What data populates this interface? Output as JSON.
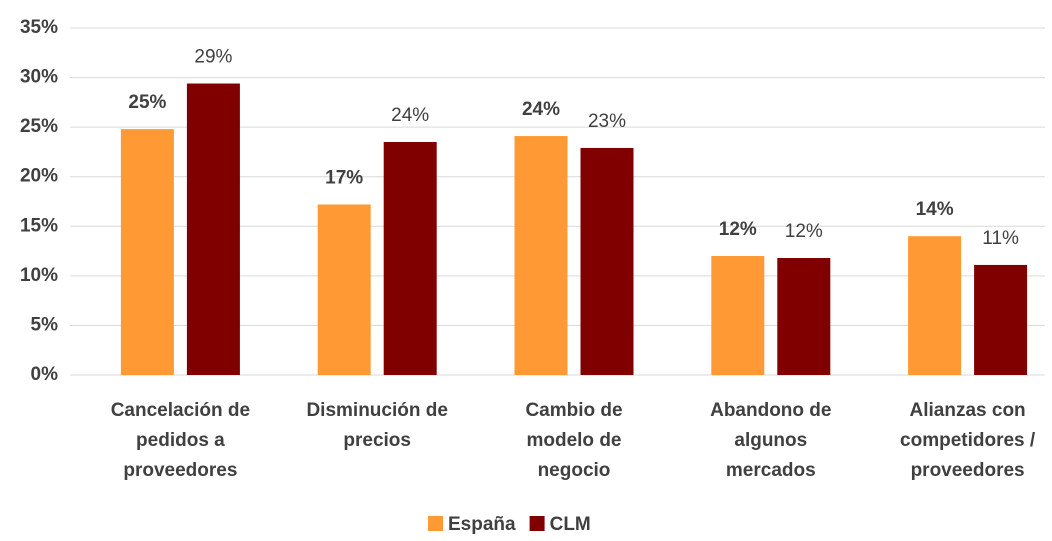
{
  "chart_data": {
    "type": "bar",
    "categories": [
      "Cancelación de\npedidos a\nproveedores",
      "Disminución de\nprecios",
      "Cambio de\nmodelo de\nnegocio",
      "Abandono de\nalgunos\nmercados",
      "Alianzas con\ncompetidores /\nproveedores"
    ],
    "series": [
      {
        "name": "España",
        "color": "#ff9933",
        "values": [
          24.8,
          17.2,
          24.1,
          12.0,
          14.0
        ],
        "value_labels": [
          "25%",
          "17%",
          "24%",
          "12%",
          "14%"
        ]
      },
      {
        "name": "CLM",
        "color": "#800000",
        "values": [
          29.4,
          23.5,
          22.9,
          11.8,
          11.1
        ],
        "value_labels": [
          "29%",
          "24%",
          "23%",
          "12%",
          "11%"
        ]
      }
    ],
    "ylim": [
      0,
      35
    ],
    "yticks": [
      {
        "value": 0,
        "label": "0%"
      },
      {
        "value": 5,
        "label": "5%"
      },
      {
        "value": 10,
        "label": "10%"
      },
      {
        "value": 15,
        "label": "15%"
      },
      {
        "value": 20,
        "label": "20%"
      },
      {
        "value": 25,
        "label": "25%"
      },
      {
        "value": 30,
        "label": "30%"
      },
      {
        "value": 35,
        "label": "35%"
      }
    ],
    "grid": true,
    "legend": "bottom"
  }
}
